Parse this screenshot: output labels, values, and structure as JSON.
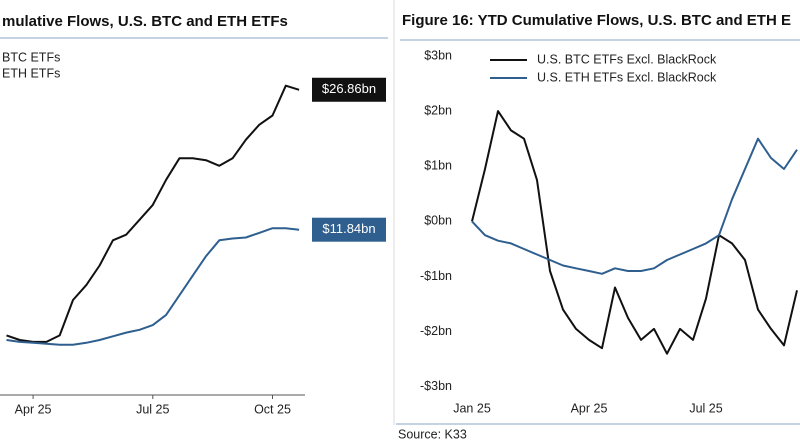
{
  "chart_data": [
    {
      "type": "line",
      "title": "mulative Flows, U.S. BTC and ETH ETFs",
      "categories": [
        null,
        null,
        "Apr 25",
        null,
        null,
        null,
        null,
        null,
        null,
        null,
        null,
        "Jul 25",
        null,
        null,
        null,
        null,
        null,
        null,
        null,
        null,
        "Oct 25",
        null,
        null
      ],
      "ylim": [
        -5.9,
        32.2
      ],
      "series": [
        {
          "name": "BTC ETFs",
          "color": "#111111",
          "values": [
            0.5,
            0,
            -0.2,
            -0.2,
            0.5,
            4.3,
            5.9,
            8.0,
            10.7,
            11.3,
            12.9,
            14.5,
            17.2,
            19.5,
            19.5,
            19.3,
            18.7,
            19.5,
            21.5,
            23.1,
            24.1,
            27.3,
            26.86
          ],
          "value_labels": [
            null,
            null,
            null,
            null,
            null,
            null,
            null,
            null,
            null,
            null,
            null,
            null,
            null,
            null,
            null,
            null,
            null,
            null,
            null,
            null,
            null,
            null,
            "$26.86bn"
          ]
        },
        {
          "name": "ETH ETFs",
          "color": "#2e5f8f",
          "values": [
            0,
            -0.2,
            -0.3,
            -0.4,
            -0.5,
            -0.5,
            -0.3,
            0,
            0.4,
            0.8,
            1.1,
            1.6,
            2.7,
            4.8,
            6.9,
            9.0,
            10.7,
            10.9,
            11.0,
            11.5,
            12.0,
            12.0,
            11.84
          ],
          "value_labels": [
            null,
            null,
            null,
            null,
            null,
            null,
            null,
            null,
            null,
            null,
            null,
            null,
            null,
            null,
            null,
            null,
            null,
            null,
            null,
            null,
            null,
            null,
            "$11.84bn"
          ]
        }
      ]
    },
    {
      "type": "line",
      "title": "Figure 16: YTD Cumulative Flows, U.S. BTC and ETH E",
      "categories": [
        "Jan 25",
        null,
        null,
        null,
        null,
        null,
        null,
        null,
        null,
        "Apr 25",
        null,
        null,
        null,
        null,
        null,
        null,
        null,
        null,
        "Jul 25",
        null,
        null,
        null,
        null,
        null,
        null,
        null
      ],
      "ylim": [
        -3.24,
        3.2
      ],
      "yticks": [
        {
          "value": 3,
          "label": "$3bn"
        },
        {
          "value": 2,
          "label": "$2bn"
        },
        {
          "value": 1,
          "label": "$1bn"
        },
        {
          "value": 0,
          "label": "$0bn"
        },
        {
          "value": -1,
          "label": "-$1bn"
        },
        {
          "value": -2,
          "label": "-$2bn"
        },
        {
          "value": -3,
          "label": "-$3bn"
        }
      ],
      "series": [
        {
          "name": "U.S. BTC ETFs Excl. BlackRock",
          "color": "#111111",
          "values": [
            0,
            0.95,
            2.0,
            1.65,
            1.5,
            0.75,
            -0.9,
            -1.6,
            -1.95,
            -2.15,
            -2.3,
            -1.2,
            -1.75,
            -2.15,
            -1.95,
            -2.4,
            -1.95,
            -2.15,
            -1.4,
            -0.25,
            -0.4,
            -0.7,
            -1.6,
            -1.95,
            -2.25,
            -1.25
          ]
        },
        {
          "name": "U.S. ETH ETFs Excl. BlackRock",
          "color": "#2e5f8f",
          "values": [
            0,
            -0.25,
            -0.35,
            -0.4,
            -0.5,
            -0.6,
            -0.7,
            -0.8,
            -0.85,
            -0.9,
            -0.95,
            -0.85,
            -0.9,
            -0.9,
            -0.85,
            -0.7,
            -0.6,
            -0.5,
            -0.4,
            -0.25,
            0.4,
            0.95,
            1.5,
            1.15,
            0.95,
            1.3
          ]
        }
      ],
      "source": "Source: K33"
    }
  ]
}
